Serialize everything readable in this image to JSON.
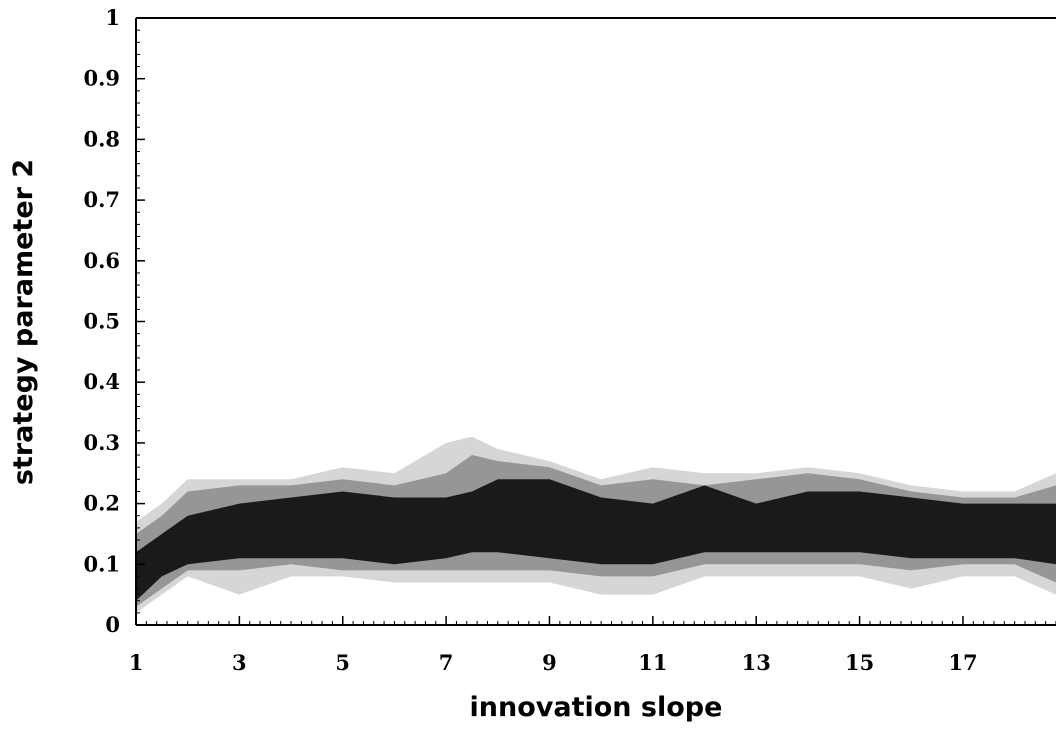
{
  "chart_data": {
    "type": "area",
    "title": "",
    "xlabel": "innovation slope",
    "ylabel": "strategy parameter 2",
    "xlim": [
      1,
      18.8
    ],
    "ylim": [
      0,
      1
    ],
    "x_ticks": [
      1,
      3,
      5,
      7,
      9,
      11,
      13,
      15,
      17
    ],
    "x_tick_labels": [
      "1",
      "3",
      "5",
      "7",
      "9",
      "11",
      "13",
      "15",
      "17"
    ],
    "y_ticks": [
      0,
      0.1,
      0.2,
      0.3,
      0.4,
      0.5,
      0.6,
      0.7,
      0.8,
      0.9,
      1
    ],
    "y_tick_labels": [
      "0",
      "0.1",
      "0.2",
      "0.3",
      "0.4",
      "0.5",
      "0.6",
      "0.7",
      "0.8",
      "0.9",
      "1"
    ],
    "grid": false,
    "legend": "none",
    "series": [
      {
        "colors": "#d6d6d6",
        "x": [
          1,
          1.5,
          2,
          3,
          4,
          5,
          6,
          7,
          7.5,
          8,
          9,
          10,
          11,
          12,
          13,
          14,
          15,
          16,
          17,
          18,
          18.8
        ],
        "upper": [
          0.17,
          0.2,
          0.24,
          0.24,
          0.24,
          0.26,
          0.25,
          0.3,
          0.31,
          0.29,
          0.27,
          0.24,
          0.26,
          0.25,
          0.25,
          0.26,
          0.25,
          0.23,
          0.22,
          0.22,
          0.25
        ],
        "lower": [
          0.02,
          0.05,
          0.08,
          0.05,
          0.08,
          0.08,
          0.07,
          0.07,
          0.07,
          0.07,
          0.07,
          0.05,
          0.05,
          0.08,
          0.08,
          0.08,
          0.08,
          0.06,
          0.08,
          0.08,
          0.05
        ]
      },
      {
        "colors": "#969696",
        "x": [
          1,
          1.5,
          2,
          3,
          4,
          5,
          6,
          7,
          7.5,
          8,
          9,
          10,
          11,
          12,
          13,
          14,
          15,
          16,
          17,
          18,
          18.8
        ],
        "upper": [
          0.15,
          0.18,
          0.22,
          0.23,
          0.23,
          0.24,
          0.23,
          0.25,
          0.28,
          0.27,
          0.26,
          0.23,
          0.24,
          0.23,
          0.24,
          0.25,
          0.24,
          0.22,
          0.21,
          0.21,
          0.23
        ],
        "lower": [
          0.03,
          0.06,
          0.09,
          0.09,
          0.1,
          0.09,
          0.09,
          0.09,
          0.09,
          0.09,
          0.09,
          0.08,
          0.08,
          0.1,
          0.1,
          0.1,
          0.1,
          0.09,
          0.1,
          0.1,
          0.07
        ]
      },
      {
        "colors": "#1a1a1a",
        "x": [
          1,
          1.5,
          2,
          3,
          4,
          5,
          6,
          7,
          7.5,
          8,
          9,
          10,
          11,
          12,
          13,
          14,
          15,
          16,
          17,
          18,
          18.8
        ],
        "upper": [
          0.12,
          0.15,
          0.18,
          0.2,
          0.21,
          0.22,
          0.21,
          0.21,
          0.22,
          0.24,
          0.24,
          0.21,
          0.2,
          0.23,
          0.2,
          0.22,
          0.22,
          0.21,
          0.2,
          0.2,
          0.2
        ],
        "lower": [
          0.04,
          0.08,
          0.1,
          0.11,
          0.11,
          0.11,
          0.1,
          0.11,
          0.12,
          0.12,
          0.11,
          0.1,
          0.1,
          0.12,
          0.12,
          0.12,
          0.12,
          0.11,
          0.11,
          0.11,
          0.1
        ]
      }
    ]
  }
}
